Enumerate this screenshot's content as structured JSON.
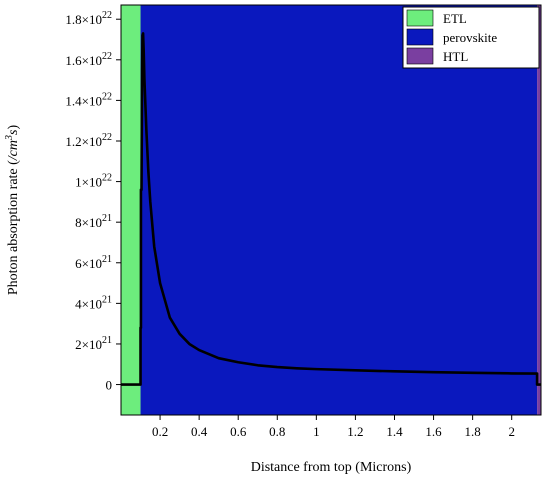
{
  "chart_data": {
    "type": "line",
    "xlabel": "Distance from top (Microns)",
    "ylabel_prefix": "Photon absorption rate (",
    "ylabel_unit_base": "/cm",
    "ylabel_unit_exp": "3",
    "ylabel_unit_tail": "s",
    "ylabel_suffix": ")",
    "xlim": [
      0.0,
      2.15
    ],
    "ylim": [
      -1.5e+21,
      1.87e+22
    ],
    "x_ticks": [
      {
        "value": 0.2,
        "label": "0.2"
      },
      {
        "value": 0.4,
        "label": "0.4"
      },
      {
        "value": 0.6,
        "label": "0.6"
      },
      {
        "value": 0.8,
        "label": "0.8"
      },
      {
        "value": 1.0,
        "label": "1"
      },
      {
        "value": 1.2,
        "label": "1.2"
      },
      {
        "value": 1.4,
        "label": "1.4"
      },
      {
        "value": 1.6,
        "label": "1.6"
      },
      {
        "value": 1.8,
        "label": "1.8"
      },
      {
        "value": 2.0,
        "label": "2"
      }
    ],
    "y_ticks": [
      {
        "value": 0,
        "mant": "0",
        "exp": ""
      },
      {
        "value": 2e+21,
        "mant": "2×10",
        "exp": "21"
      },
      {
        "value": 4e+21,
        "mant": "4×10",
        "exp": "21"
      },
      {
        "value": 6e+21,
        "mant": "6×10",
        "exp": "21"
      },
      {
        "value": 8e+21,
        "mant": "8×10",
        "exp": "21"
      },
      {
        "value": 1e+22,
        "mant": "1×10",
        "exp": "22"
      },
      {
        "value": 1.2e+22,
        "mant": "1.2×10",
        "exp": "22"
      },
      {
        "value": 1.4e+22,
        "mant": "1.4×10",
        "exp": "22"
      },
      {
        "value": 1.6e+22,
        "mant": "1.6×10",
        "exp": "22"
      },
      {
        "value": 1.8e+22,
        "mant": "1.8×10",
        "exp": "22"
      }
    ],
    "regions": [
      {
        "name": "ETL",
        "x0": 0.0,
        "x1": 0.1,
        "color": "#6ded7d"
      },
      {
        "name": "perovskite",
        "x0": 0.1,
        "x1": 2.13,
        "color": "#0a18be"
      },
      {
        "name": "HTL",
        "x0": 2.13,
        "x1": 2.15,
        "color": "#7a3fa0"
      }
    ],
    "legend": {
      "position": "top-right",
      "entries": [
        {
          "label": "ETL",
          "color": "#6ded7d"
        },
        {
          "label": "perovskite",
          "color": "#0a18be"
        },
        {
          "label": "HTL",
          "color": "#7a3fa0"
        }
      ]
    },
    "series": [
      {
        "color": "#000000",
        "x": [
          0.0,
          0.08,
          0.1,
          0.1,
          0.102,
          0.102,
          0.105,
          0.108,
          0.11,
          0.113,
          0.116,
          0.12,
          0.13,
          0.14,
          0.15,
          0.17,
          0.2,
          0.25,
          0.3,
          0.35,
          0.4,
          0.5,
          0.6,
          0.7,
          0.8,
          0.9,
          1.0,
          1.2,
          1.4,
          1.6,
          1.8,
          2.0,
          2.13,
          2.13,
          2.15
        ],
        "y": [
          0.0,
          0.0,
          0.0,
          2.8e+21,
          2.8e+21,
          9.6e+21,
          9.6e+21,
          1.55e+22,
          1.72e+22,
          1.73e+22,
          1.65e+22,
          1.5e+22,
          1.25e+22,
          1.05e+22,
          9e+21,
          6.8e+21,
          5e+21,
          3.3e+21,
          2.5e+21,
          2e+21,
          1.7e+21,
          1.3e+21,
          1.1e+21,
          9.5e+20,
          8.6e+20,
          8e+20,
          7.6e+20,
          7e+20,
          6.5e+20,
          6.1e+20,
          5.8e+20,
          5.5e+20,
          5.4e+20,
          0.0,
          0.0
        ]
      }
    ]
  }
}
